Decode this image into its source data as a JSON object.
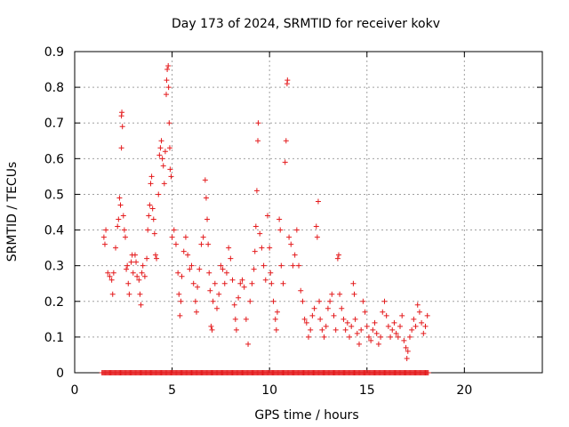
{
  "chart_data": {
    "type": "scatter",
    "title": "Day 173 of 2024, SRMTID for receiver kokv",
    "xlabel": "GPS time / hours",
    "ylabel": "SRMTID / TECUs",
    "xlim": [
      0,
      24
    ],
    "ylim": [
      0,
      0.9
    ],
    "xticks": [
      0,
      5,
      10,
      15,
      20
    ],
    "yticks": [
      0,
      0.1,
      0.2,
      0.3,
      0.4,
      0.5,
      0.6,
      0.7,
      0.8,
      0.9
    ],
    "xtick_labels": [
      "0",
      "5",
      "10",
      "15",
      "20"
    ],
    "ytick_labels": [
      "0",
      "0.1",
      "0.2",
      "0.3",
      "0.4",
      "0.5",
      "0.6",
      "0.7",
      "0.8",
      "0.9"
    ],
    "grid": true,
    "marker": "plus",
    "color": "#e41a1c",
    "zero_band": [
      1.4,
      18.2
    ],
    "series": [
      {
        "name": "SRMTID",
        "points": [
          [
            1.5,
            0.38
          ],
          [
            1.55,
            0.36
          ],
          [
            1.6,
            0.4
          ],
          [
            1.7,
            0.28
          ],
          [
            1.8,
            0.27
          ],
          [
            1.9,
            0.26
          ],
          [
            1.95,
            0.22
          ],
          [
            2.0,
            0.28
          ],
          [
            2.1,
            0.35
          ],
          [
            2.2,
            0.41
          ],
          [
            2.25,
            0.43
          ],
          [
            2.3,
            0.49
          ],
          [
            2.35,
            0.47
          ],
          [
            2.4,
            0.72
          ],
          [
            2.42,
            0.73
          ],
          [
            2.45,
            0.69
          ],
          [
            2.4,
            0.63
          ],
          [
            2.5,
            0.44
          ],
          [
            2.55,
            0.4
          ],
          [
            2.6,
            0.38
          ],
          [
            2.65,
            0.29
          ],
          [
            2.7,
            0.3
          ],
          [
            2.75,
            0.25
          ],
          [
            2.8,
            0.22
          ],
          [
            2.9,
            0.31
          ],
          [
            2.95,
            0.33
          ],
          [
            3.0,
            0.28
          ],
          [
            3.1,
            0.33
          ],
          [
            3.15,
            0.31
          ],
          [
            3.2,
            0.27
          ],
          [
            3.3,
            0.26
          ],
          [
            3.35,
            0.22
          ],
          [
            3.4,
            0.19
          ],
          [
            3.45,
            0.28
          ],
          [
            3.5,
            0.3
          ],
          [
            3.6,
            0.27
          ],
          [
            3.7,
            0.32
          ],
          [
            3.75,
            0.4
          ],
          [
            3.8,
            0.44
          ],
          [
            3.85,
            0.47
          ],
          [
            3.9,
            0.53
          ],
          [
            3.95,
            0.55
          ],
          [
            4.0,
            0.46
          ],
          [
            4.05,
            0.43
          ],
          [
            4.1,
            0.39
          ],
          [
            4.15,
            0.33
          ],
          [
            4.2,
            0.32
          ],
          [
            4.3,
            0.5
          ],
          [
            4.35,
            0.61
          ],
          [
            4.4,
            0.63
          ],
          [
            4.45,
            0.65
          ],
          [
            4.5,
            0.6
          ],
          [
            4.55,
            0.58
          ],
          [
            4.6,
            0.53
          ],
          [
            4.65,
            0.62
          ],
          [
            4.7,
            0.78
          ],
          [
            4.72,
            0.82
          ],
          [
            4.75,
            0.85
          ],
          [
            4.8,
            0.86
          ],
          [
            4.82,
            0.8
          ],
          [
            4.85,
            0.7
          ],
          [
            4.88,
            0.63
          ],
          [
            4.9,
            0.57
          ],
          [
            4.95,
            0.55
          ],
          [
            5.0,
            0.38
          ],
          [
            5.1,
            0.4
          ],
          [
            5.2,
            0.36
          ],
          [
            5.3,
            0.28
          ],
          [
            5.35,
            0.22
          ],
          [
            5.4,
            0.16
          ],
          [
            5.45,
            0.2
          ],
          [
            5.5,
            0.27
          ],
          [
            5.6,
            0.34
          ],
          [
            5.7,
            0.38
          ],
          [
            5.8,
            0.33
          ],
          [
            5.9,
            0.29
          ],
          [
            6.0,
            0.3
          ],
          [
            6.1,
            0.25
          ],
          [
            6.2,
            0.2
          ],
          [
            6.25,
            0.17
          ],
          [
            6.3,
            0.24
          ],
          [
            6.4,
            0.29
          ],
          [
            6.5,
            0.36
          ],
          [
            6.6,
            0.38
          ],
          [
            6.7,
            0.54
          ],
          [
            6.75,
            0.49
          ],
          [
            6.8,
            0.43
          ],
          [
            6.85,
            0.36
          ],
          [
            6.9,
            0.28
          ],
          [
            6.95,
            0.23
          ],
          [
            7.0,
            0.13
          ],
          [
            7.05,
            0.12
          ],
          [
            7.1,
            0.2
          ],
          [
            7.2,
            0.25
          ],
          [
            7.3,
            0.18
          ],
          [
            7.4,
            0.22
          ],
          [
            7.5,
            0.3
          ],
          [
            7.6,
            0.29
          ],
          [
            7.7,
            0.25
          ],
          [
            7.8,
            0.28
          ],
          [
            7.9,
            0.35
          ],
          [
            8.0,
            0.32
          ],
          [
            8.1,
            0.26
          ],
          [
            8.2,
            0.19
          ],
          [
            8.25,
            0.15
          ],
          [
            8.3,
            0.12
          ],
          [
            8.4,
            0.21
          ],
          [
            8.5,
            0.25
          ],
          [
            8.6,
            0.26
          ],
          [
            8.7,
            0.24
          ],
          [
            8.8,
            0.15
          ],
          [
            8.9,
            0.08
          ],
          [
            9.0,
            0.2
          ],
          [
            9.1,
            0.25
          ],
          [
            9.2,
            0.29
          ],
          [
            9.25,
            0.34
          ],
          [
            9.3,
            0.41
          ],
          [
            9.35,
            0.51
          ],
          [
            9.4,
            0.65
          ],
          [
            9.42,
            0.7
          ],
          [
            9.5,
            0.39
          ],
          [
            9.6,
            0.35
          ],
          [
            9.7,
            0.3
          ],
          [
            9.8,
            0.26
          ],
          [
            9.9,
            0.44
          ],
          [
            10.0,
            0.35
          ],
          [
            10.05,
            0.28
          ],
          [
            10.1,
            0.25
          ],
          [
            10.2,
            0.2
          ],
          [
            10.3,
            0.15
          ],
          [
            10.35,
            0.12
          ],
          [
            10.4,
            0.17
          ],
          [
            10.5,
            0.43
          ],
          [
            10.55,
            0.4
          ],
          [
            10.6,
            0.3
          ],
          [
            10.7,
            0.25
          ],
          [
            10.8,
            0.59
          ],
          [
            10.85,
            0.65
          ],
          [
            10.9,
            0.81
          ],
          [
            10.92,
            0.82
          ],
          [
            11.0,
            0.38
          ],
          [
            11.1,
            0.36
          ],
          [
            11.2,
            0.3
          ],
          [
            11.3,
            0.33
          ],
          [
            11.4,
            0.4
          ],
          [
            11.5,
            0.3
          ],
          [
            11.6,
            0.23
          ],
          [
            11.7,
            0.2
          ],
          [
            11.8,
            0.15
          ],
          [
            11.9,
            0.14
          ],
          [
            12.0,
            0.1
          ],
          [
            12.1,
            0.12
          ],
          [
            12.2,
            0.16
          ],
          [
            12.3,
            0.18
          ],
          [
            12.4,
            0.41
          ],
          [
            12.45,
            0.38
          ],
          [
            12.5,
            0.48
          ],
          [
            12.55,
            0.2
          ],
          [
            12.6,
            0.15
          ],
          [
            12.7,
            0.12
          ],
          [
            12.8,
            0.1
          ],
          [
            12.9,
            0.13
          ],
          [
            13.0,
            0.18
          ],
          [
            13.1,
            0.2
          ],
          [
            13.2,
            0.22
          ],
          [
            13.3,
            0.16
          ],
          [
            13.4,
            0.12
          ],
          [
            13.5,
            0.32
          ],
          [
            13.55,
            0.33
          ],
          [
            13.6,
            0.22
          ],
          [
            13.7,
            0.18
          ],
          [
            13.8,
            0.15
          ],
          [
            13.9,
            0.12
          ],
          [
            14.0,
            0.14
          ],
          [
            14.1,
            0.1
          ],
          [
            14.2,
            0.13
          ],
          [
            14.3,
            0.25
          ],
          [
            14.35,
            0.22
          ],
          [
            14.4,
            0.15
          ],
          [
            14.5,
            0.11
          ],
          [
            14.6,
            0.08
          ],
          [
            14.7,
            0.12
          ],
          [
            14.8,
            0.2
          ],
          [
            14.9,
            0.17
          ],
          [
            15.0,
            0.13
          ],
          [
            15.1,
            0.1
          ],
          [
            15.2,
            0.09
          ],
          [
            15.3,
            0.12
          ],
          [
            15.4,
            0.14
          ],
          [
            15.5,
            0.11
          ],
          [
            15.6,
            0.08
          ],
          [
            15.7,
            0.1
          ],
          [
            15.8,
            0.17
          ],
          [
            15.9,
            0.2
          ],
          [
            16.0,
            0.16
          ],
          [
            16.1,
            0.13
          ],
          [
            16.2,
            0.1
          ],
          [
            16.3,
            0.12
          ],
          [
            16.4,
            0.14
          ],
          [
            16.5,
            0.11
          ],
          [
            16.6,
            0.1
          ],
          [
            16.7,
            0.13
          ],
          [
            16.8,
            0.16
          ],
          [
            16.9,
            0.09
          ],
          [
            17.0,
            0.07
          ],
          [
            17.05,
            0.04
          ],
          [
            17.1,
            0.06
          ],
          [
            17.2,
            0.1
          ],
          [
            17.3,
            0.12
          ],
          [
            17.4,
            0.15
          ],
          [
            17.5,
            0.13
          ],
          [
            17.6,
            0.19
          ],
          [
            17.7,
            0.17
          ],
          [
            17.8,
            0.14
          ],
          [
            17.9,
            0.11
          ],
          [
            18.0,
            0.13
          ],
          [
            18.1,
            0.16
          ]
        ]
      }
    ]
  }
}
